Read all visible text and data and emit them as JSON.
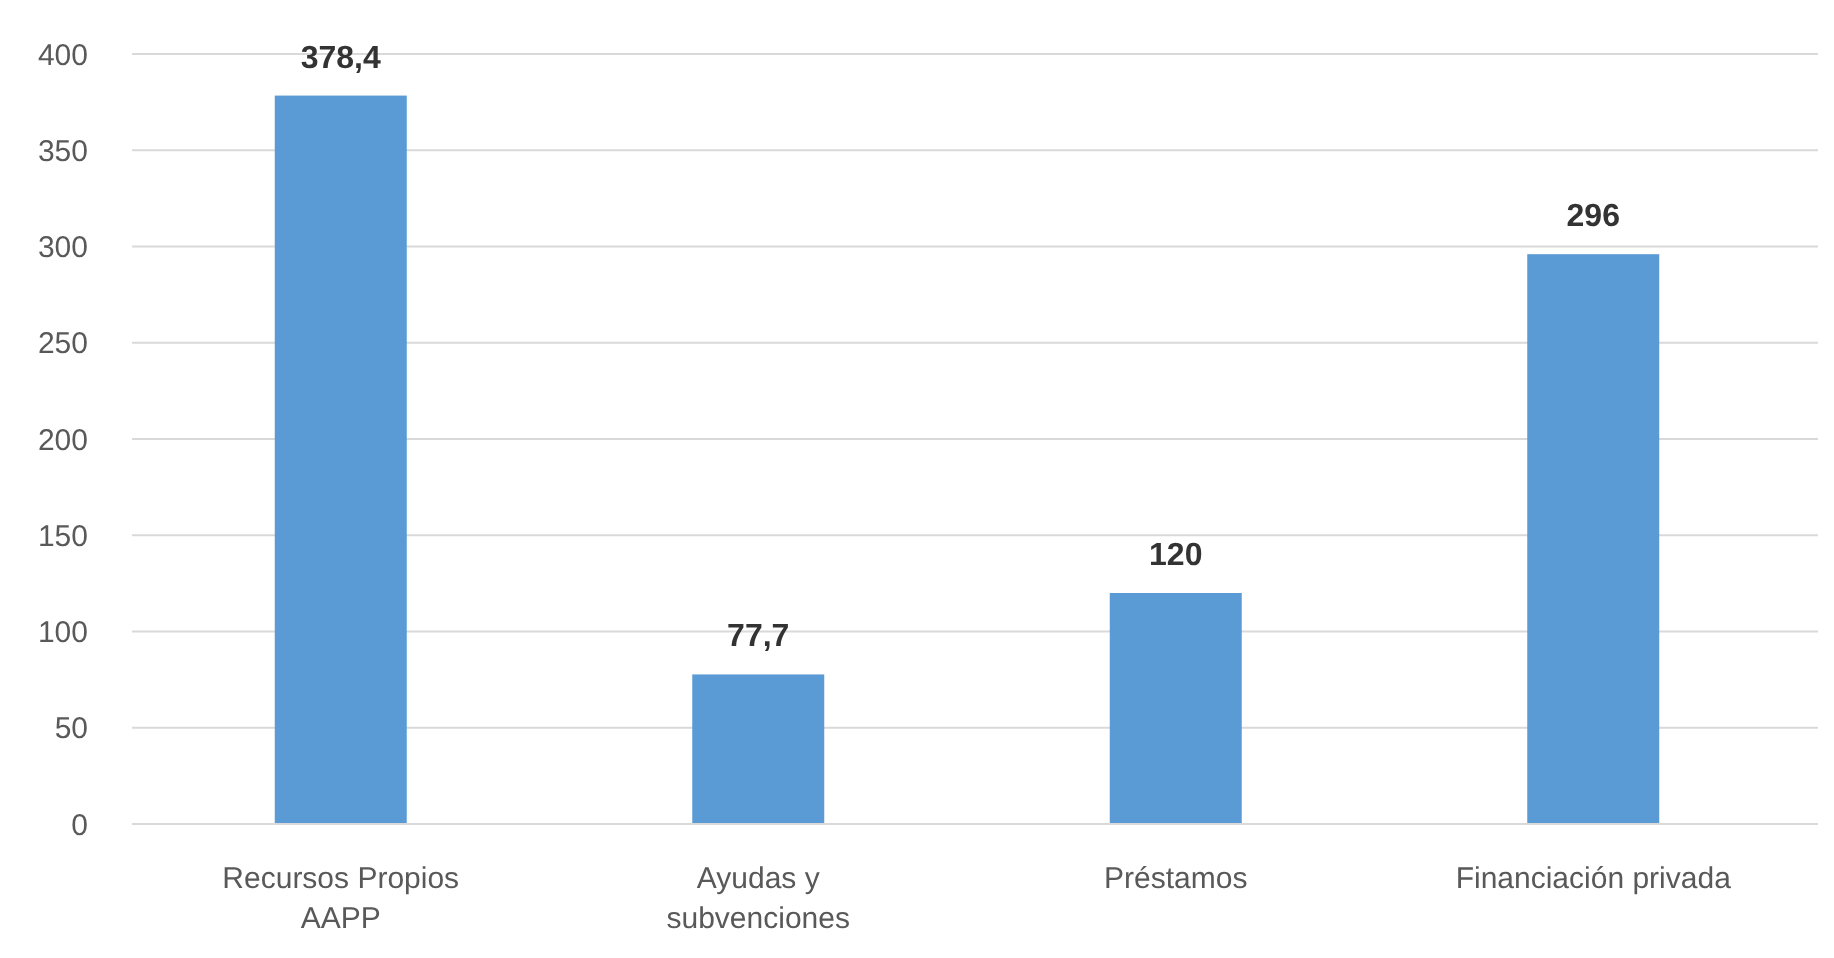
{
  "chart_data": {
    "type": "bar",
    "categories": [
      "Recursos Propios AAPP",
      "Ayudas y subvenciones",
      "Préstamos",
      "Financiación privada"
    ],
    "values": [
      378.4,
      77.7,
      120,
      296
    ],
    "value_labels": [
      "378,4",
      "77,7",
      "120",
      "296"
    ],
    "color": "#5b9bd5",
    "ylim": [
      0,
      400
    ],
    "yticks": [
      0,
      50,
      100,
      150,
      200,
      250,
      300,
      350,
      400
    ],
    "grid": "y"
  }
}
